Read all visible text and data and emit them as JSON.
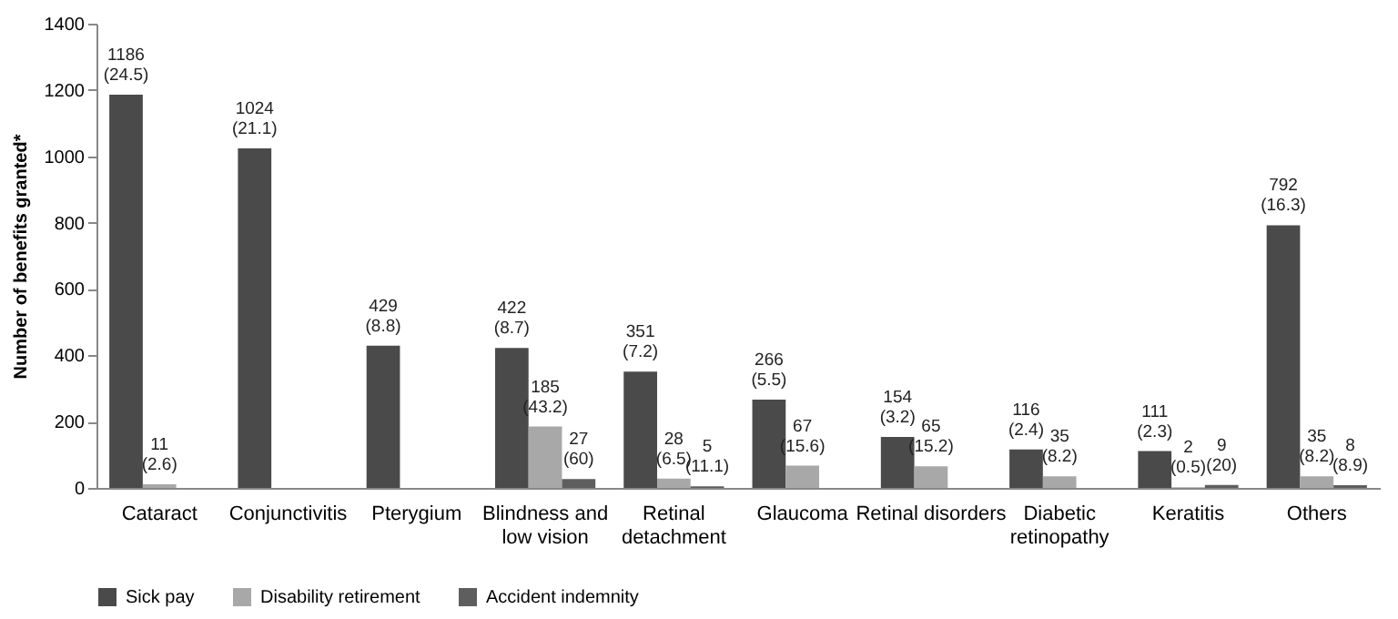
{
  "chart_data": {
    "type": "bar",
    "ylabel": "Number of benefits granted*",
    "categories": [
      "Cataract",
      "Conjunctivitis",
      "Pterygium",
      "Blindness and\nlow vision",
      "Retinal\ndetachment",
      "Glaucoma",
      "Retinal disorders",
      "Diabetic\nretinopathy",
      "Keratitis",
      "Others"
    ],
    "series": [
      {
        "name": "Sick pay",
        "color": "#4a4a4a",
        "values": [
          1186,
          1024,
          429,
          422,
          351,
          266,
          154,
          116,
          111,
          792
        ],
        "value_labels": [
          "1186 (24.5)",
          "1024 (21.1)",
          "429 (8.8)",
          "422 (8.7)",
          "351 (7.2)",
          "266 (5.5)",
          "154 (3.2)",
          "116 (2.4)",
          "111 (2.3)",
          "792 (16.3)"
        ]
      },
      {
        "name": "Disability retirement",
        "color": "#a8a8a8",
        "values": [
          11,
          null,
          null,
          185,
          28,
          67,
          65,
          35,
          2,
          35
        ],
        "value_labels": [
          "11 (2.6)",
          null,
          null,
          "185 (43.2)",
          "28 (6.5)",
          "67 (15.6)",
          "65 (15.2)",
          "35 (8.2)",
          "2 (0.5)",
          "35 (8.2)"
        ]
      },
      {
        "name": "Accident indemnity",
        "color": "#5e5e5e",
        "values": [
          null,
          null,
          null,
          27,
          5,
          null,
          null,
          null,
          9,
          8
        ],
        "value_labels": [
          null,
          null,
          null,
          "27 (60)",
          "5 (11.1)",
          null,
          null,
          null,
          "9 (20)",
          "8 (8.9)"
        ]
      }
    ],
    "ylim": [
      0,
      1400
    ],
    "yticks": [
      0,
      200,
      400,
      600,
      800,
      1000,
      1200,
      1400
    ],
    "grid": false,
    "legend": "bottom"
  }
}
